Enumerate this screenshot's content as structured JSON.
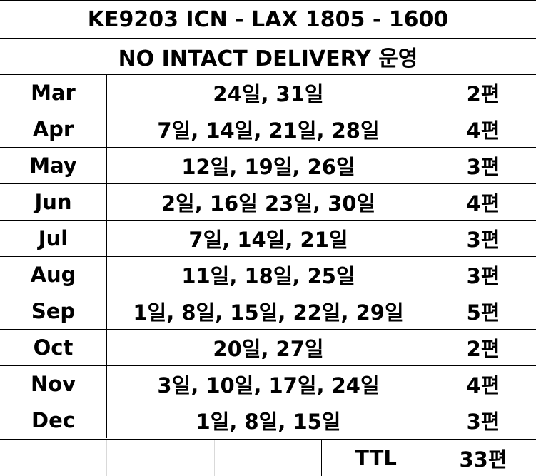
{
  "header": {
    "flight": "KE9203 ICN - LAX 1805 - 1600",
    "subtitle": "NO INTACT DELIVERY 운영"
  },
  "rows": [
    {
      "month": "Mar",
      "dates": "24일, 31일",
      "count": "2편"
    },
    {
      "month": "Apr",
      "dates": "7일, 14일, 21일, 28일",
      "count": "4편"
    },
    {
      "month": "May",
      "dates": "12일, 19일, 26일",
      "count": "3편"
    },
    {
      "month": "Jun",
      "dates": "2일, 16일 23일, 30일",
      "count": "4편"
    },
    {
      "month": "Jul",
      "dates": "7일, 14일, 21일",
      "count": "3편"
    },
    {
      "month": "Aug",
      "dates": "11일, 18일, 25일",
      "count": "3편"
    },
    {
      "month": "Sep",
      "dates": "1일, 8일, 15일, 22일, 29일",
      "count": "5편"
    },
    {
      "month": "Oct",
      "dates": "20일, 27일",
      "count": "2편"
    },
    {
      "month": "Nov",
      "dates": "3일, 10일, 17일, 24일",
      "count": "4편"
    },
    {
      "month": "Dec",
      "dates": "1일, 8일, 15일",
      "count": "3편"
    }
  ],
  "total": {
    "label": "TTL",
    "value": "33편"
  }
}
